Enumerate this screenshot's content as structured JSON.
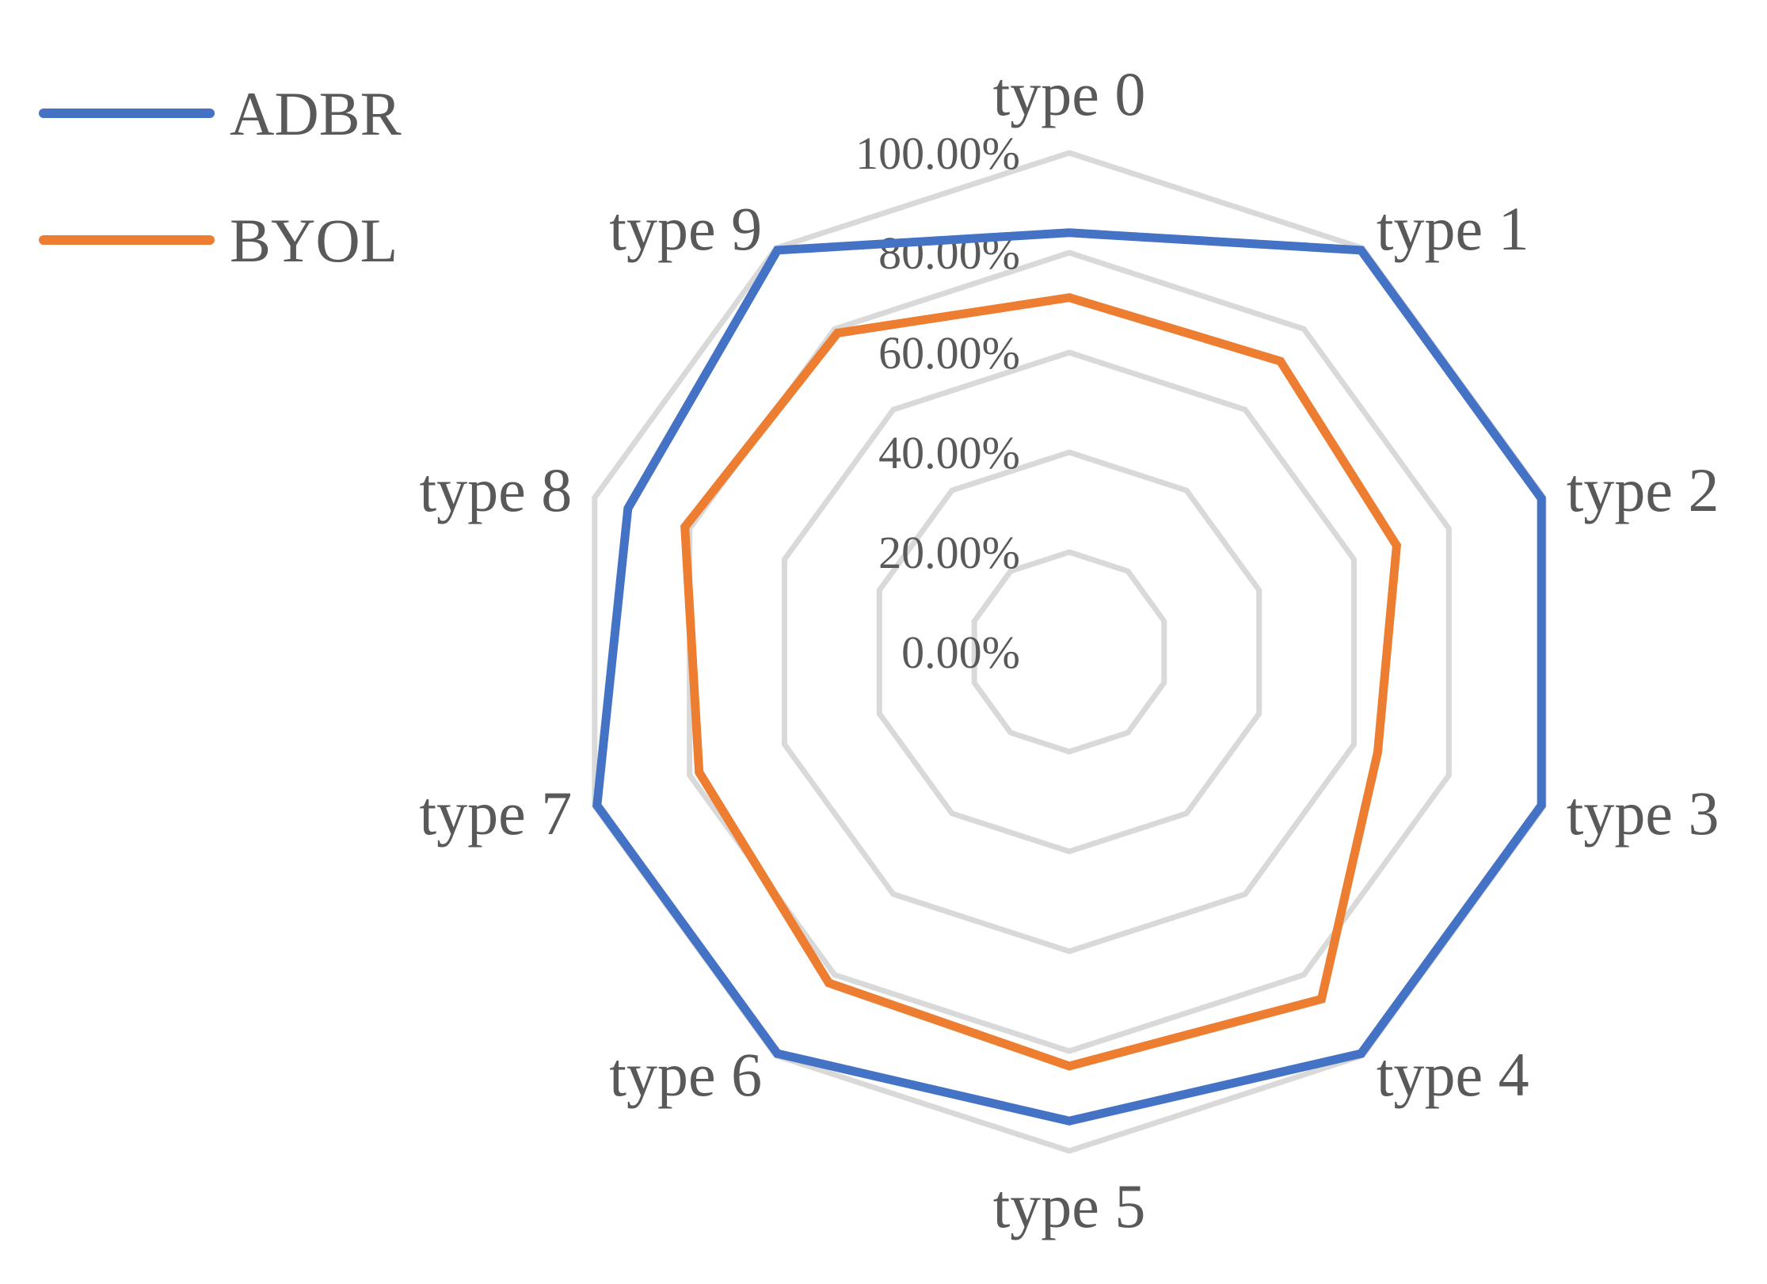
{
  "chart_data": {
    "type": "radar",
    "categories": [
      "type 0",
      "type 1",
      "type 2",
      "type 3",
      "type 4",
      "type 5",
      "type 6",
      "type 7",
      "type 8",
      "type 9"
    ],
    "series": [
      {
        "name": "ADBR",
        "color": "#4472c4",
        "values": [
          0.84,
          0.995,
          0.995,
          0.995,
          0.995,
          0.94,
          0.995,
          0.995,
          0.93,
          0.995
        ]
      },
      {
        "name": "BYOL",
        "color": "#ed7d31",
        "values": [
          0.71,
          0.72,
          0.69,
          0.65,
          0.86,
          0.83,
          0.82,
          0.78,
          0.81,
          0.79
        ]
      }
    ],
    "r_ticks": [
      "0.00%",
      "20.00%",
      "40.00%",
      "60.00%",
      "80.00%",
      "100.00%"
    ],
    "r_range": [
      0,
      1
    ],
    "grid": true,
    "legend_position": "top-left"
  }
}
